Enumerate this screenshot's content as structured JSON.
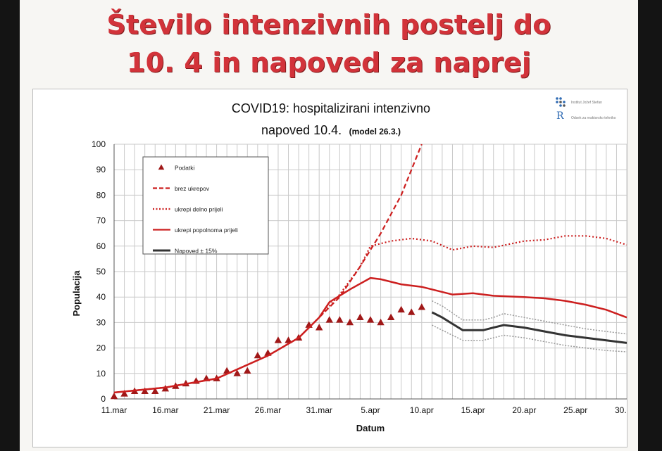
{
  "slide": {
    "title_line1": "Število intenzivnih postelj do",
    "title_line2": "10. 4 in napoved za naprej"
  },
  "logo": {
    "icon": "institute-logo-dots",
    "text1": "Institut Jožef Stefan",
    "mark": "R",
    "text2": "Odsek za reaktorsko tehniko"
  },
  "chart_data": {
    "type": "line",
    "title": "COVID19: hospitalizirani intenzivno",
    "subtitle": "napoved 10.4.",
    "subtitle_note": "(model 26.3.)",
    "xlabel": "Datum",
    "ylabel": "Populacija",
    "ylim": [
      0,
      100
    ],
    "yticks": [
      0,
      10,
      20,
      30,
      40,
      50,
      60,
      70,
      80,
      90,
      100
    ],
    "xlim": [
      "2020-03-11",
      "2020-04-30"
    ],
    "xticks": [
      "2020-03-11",
      "2020-03-16",
      "2020-03-21",
      "2020-03-26",
      "2020-03-31",
      "2020-04-05",
      "2020-04-10",
      "2020-04-15",
      "2020-04-20",
      "2020-04-25",
      "2020-04-30"
    ],
    "xtick_labels": [
      "11.mar",
      "16.mar",
      "21.mar",
      "26.mar",
      "31.mar",
      "5.apr",
      "10.apr",
      "15.apr",
      "20.apr",
      "25.apr",
      "30.apr"
    ],
    "grid": true,
    "legend_position": "top-left",
    "colors": {
      "red": "#cc1f1f",
      "black": "#333333",
      "grey": "#999999"
    },
    "series": [
      {
        "name": "Podatki",
        "style": "markers",
        "x": [
          "2020-03-11",
          "2020-03-12",
          "2020-03-13",
          "2020-03-14",
          "2020-03-15",
          "2020-03-16",
          "2020-03-17",
          "2020-03-18",
          "2020-03-19",
          "2020-03-20",
          "2020-03-21",
          "2020-03-22",
          "2020-03-23",
          "2020-03-24",
          "2020-03-25",
          "2020-03-26",
          "2020-03-27",
          "2020-03-28",
          "2020-03-29",
          "2020-03-30",
          "2020-03-31",
          "2020-04-01",
          "2020-04-02",
          "2020-04-03",
          "2020-04-04",
          "2020-04-05",
          "2020-04-06",
          "2020-04-07",
          "2020-04-08",
          "2020-04-09",
          "2020-04-10"
        ],
        "y": [
          1,
          2,
          3,
          3,
          3,
          4,
          5,
          6,
          7,
          8,
          8,
          11,
          10,
          11,
          17,
          18,
          23,
          23,
          24,
          29,
          28,
          31,
          31,
          30,
          32,
          31,
          30,
          32,
          35,
          34,
          36
        ]
      },
      {
        "name": "brez ukrepov",
        "style": "dashed",
        "x": [
          "2020-03-11",
          "2020-03-16",
          "2020-03-21",
          "2020-03-26",
          "2020-03-29",
          "2020-03-31",
          "2020-04-02",
          "2020-04-04",
          "2020-04-06",
          "2020-04-08",
          "2020-04-10"
        ],
        "y": [
          2.5,
          4.5,
          8,
          17,
          24,
          32,
          40,
          52,
          65,
          80,
          100
        ]
      },
      {
        "name": "ukrepi delno prijeli",
        "style": "dotted",
        "x": [
          "2020-03-11",
          "2020-03-16",
          "2020-03-21",
          "2020-03-26",
          "2020-03-29",
          "2020-03-31",
          "2020-04-02",
          "2020-04-04",
          "2020-04-05",
          "2020-04-07",
          "2020-04-09",
          "2020-04-11",
          "2020-04-13",
          "2020-04-15",
          "2020-04-17",
          "2020-04-20",
          "2020-04-22",
          "2020-04-24",
          "2020-04-26",
          "2020-04-28",
          "2020-04-30"
        ],
        "y": [
          2.5,
          4.5,
          8,
          17,
          24,
          32,
          41,
          52,
          60,
          62,
          63,
          62,
          58.5,
          60,
          59.5,
          62,
          62.5,
          64,
          64,
          63,
          60.5
        ]
      },
      {
        "name": "ukrepi popolnoma prijeli",
        "style": "solid",
        "x": [
          "2020-03-11",
          "2020-03-16",
          "2020-03-21",
          "2020-03-26",
          "2020-03-29",
          "2020-03-31",
          "2020-04-01",
          "2020-04-03",
          "2020-04-05",
          "2020-04-06",
          "2020-04-08",
          "2020-04-10",
          "2020-04-13",
          "2020-04-15",
          "2020-04-17",
          "2020-04-20",
          "2020-04-22",
          "2020-04-24",
          "2020-04-26",
          "2020-04-28",
          "2020-04-30"
        ],
        "y": [
          2.5,
          4.5,
          8,
          17,
          24,
          32,
          38,
          43,
          47.5,
          47,
          45,
          44,
          41,
          41.5,
          40.5,
          40,
          39.5,
          38.5,
          37,
          35,
          32
        ]
      },
      {
        "name": "Napoved ± 15%",
        "style": "band",
        "x": [
          "2020-04-11",
          "2020-04-12",
          "2020-04-14",
          "2020-04-16",
          "2020-04-17",
          "2020-04-18",
          "2020-04-20",
          "2020-04-22",
          "2020-04-24",
          "2020-04-26",
          "2020-04-28",
          "2020-04-30"
        ],
        "y": [
          34,
          32,
          27,
          27,
          28,
          29,
          28,
          26.5,
          25,
          24,
          23,
          22
        ],
        "upper": [
          38.5,
          36.5,
          31,
          31,
          32,
          33.5,
          32,
          30.5,
          29,
          27.5,
          26.5,
          25.5
        ],
        "lower": [
          29,
          27,
          23,
          23,
          24,
          25,
          24,
          22.5,
          21,
          20,
          19,
          18.5
        ]
      }
    ]
  }
}
